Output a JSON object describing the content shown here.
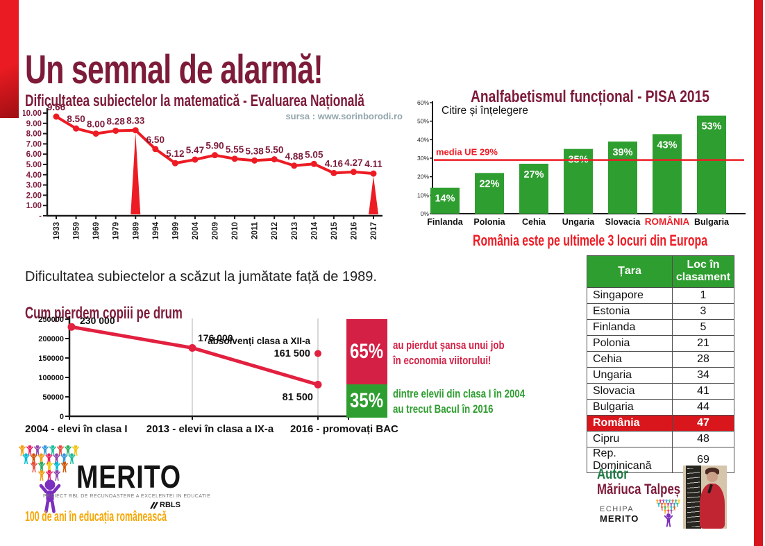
{
  "page": {
    "title": "Un semnal de alarmă!"
  },
  "colors": {
    "maroon": "#7d1b39",
    "bright_red": "#ee1c25",
    "crimson": "#d42045",
    "green": "#2f9e30",
    "dark_green": "#1f7a44",
    "orange": "#f7a600",
    "source_gray": "#93a6ad",
    "table_highlight_red": "#d9161c",
    "side_band_red": "#d8151e"
  },
  "chart_data": [
    {
      "id": "eval-matematica",
      "type": "line",
      "title": "Dificultatea subiectelor la matematică - Evaluarea Națională",
      "source": "sursa : www.sorinborodi.ro",
      "categories": [
        "1933",
        "1959",
        "1969",
        "1979",
        "1989",
        "1994",
        "1999",
        "2004",
        "2009",
        "2010",
        "2011",
        "2012",
        "2013",
        "2014",
        "2015",
        "2016",
        "2017"
      ],
      "values": [
        9.66,
        8.5,
        8.0,
        8.28,
        8.33,
        6.5,
        5.12,
        5.47,
        5.9,
        5.55,
        5.38,
        5.5,
        4.88,
        5.05,
        4.16,
        4.27,
        4.11
      ],
      "value_labels": [
        "9.66",
        "8.50",
        "8.00",
        "8.28",
        "8.33",
        "6.50",
        "5.12",
        "5.47",
        "5.90",
        "5.55",
        "5.38",
        "5.50",
        "4.88",
        "5.05",
        "4.16",
        "4.27",
        "4.11"
      ],
      "ylim": [
        0,
        10
      ],
      "ytick_labels": [
        "10.00",
        "9.00",
        "8.00",
        "7.00",
        "6.00",
        "5.00",
        "4.00",
        "3.00",
        "2.00",
        "1.00",
        "-"
      ],
      "highlight_years": [
        "1989",
        "2017"
      ],
      "line_color": "#ed1c24",
      "grid": false,
      "legend": "none"
    },
    {
      "id": "pisa-2015",
      "type": "bar",
      "title": "Analfabetismul funcțional - PISA 2015",
      "subtitle": "Citire și înțelegere",
      "categories": [
        "Finlanda",
        "Polonia",
        "Cehia",
        "Ungaria",
        "Slovacia",
        "ROMÂNIA",
        "Bulgaria"
      ],
      "values": [
        14,
        22,
        27,
        35,
        39,
        43,
        53
      ],
      "value_labels": [
        "14%",
        "22%",
        "27%",
        "35%",
        "39%",
        "43%",
        "53%"
      ],
      "ylim": [
        0,
        60
      ],
      "ytick_labels": [
        "60%",
        "50%",
        "40%",
        "30%",
        "20%",
        "10%",
        "0%"
      ],
      "refline": {
        "value": 29,
        "label": "media UE 29%"
      },
      "highlight_category": "ROMÂNIA",
      "bar_color": "#2f9e30",
      "footer": "România este pe ultimele 3 locuri din Europa",
      "grid": false,
      "legend": "none"
    },
    {
      "id": "cum-pierdem-copiii",
      "type": "line",
      "title": "Cum pierdem copiii pe drum",
      "categories": [
        "2004 - elevi în clasa I",
        "2013 - elevi în clasa a IX-a",
        "2016 - promovați BAC"
      ],
      "values": [
        230000,
        176000,
        81500
      ],
      "point_labels": [
        "230 000",
        "176 000",
        "81 500"
      ],
      "extra_point": {
        "label": "absolvenți clasa a XII-a",
        "value": 161500,
        "value_label": "161 500"
      },
      "ylim": [
        0,
        250000
      ],
      "ytick_labels": [
        "250000",
        "200000",
        "150000",
        "100000",
        "50000",
        "0"
      ],
      "line_color": "#e2203f",
      "grid": false,
      "legend": "none",
      "callouts": [
        {
          "pct": "65%",
          "color": "#d42045",
          "line1": "au pierdut șansa unui job",
          "line2": "în economia viitorului!"
        },
        {
          "pct": "35%",
          "color": "#2f9e30",
          "line1": "dintre elevii din clasa I în 2004",
          "line2": "au trecut Bacul în 2016"
        }
      ]
    }
  ],
  "texts": {
    "conclusion": "Dificultatea subiectelor a scăzut la jumătate față de 1989."
  },
  "table": {
    "headers": [
      "Țara",
      "Loc în clasament"
    ],
    "rows": [
      {
        "country": "Singapore",
        "rank": "1",
        "highlight": false
      },
      {
        "country": "Estonia",
        "rank": "3",
        "highlight": false
      },
      {
        "country": "Finlanda",
        "rank": "5",
        "highlight": false
      },
      {
        "country": "Polonia",
        "rank": "21",
        "highlight": false
      },
      {
        "country": "Cehia",
        "rank": "28",
        "highlight": false
      },
      {
        "country": "Ungaria",
        "rank": "34",
        "highlight": false
      },
      {
        "country": "Slovacia",
        "rank": "41",
        "highlight": false
      },
      {
        "country": "Bulgaria",
        "rank": "44",
        "highlight": false
      },
      {
        "country": "România",
        "rank": "47",
        "highlight": true
      },
      {
        "country": "Cipru",
        "rank": "48",
        "highlight": false
      },
      {
        "country": "Rep. Dominicană",
        "rank": "69",
        "highlight": false
      }
    ]
  },
  "branding": {
    "logo_text": "MERITO",
    "logo_subtext": "PROIECT RBL DE RECUNOASTERE A EXCELENTEI IN EDUCATIE",
    "rbls": "RBLS",
    "anniversary": "100 de ani în educația românească",
    "logo_palette": [
      "#f39c12",
      "#e91e63",
      "#8e44ad",
      "#3498db",
      "#1abc9c",
      "#e74c3c",
      "#27ae60",
      "#f1c40f",
      "#00bcd4",
      "#d35400"
    ],
    "big_person_color": "#7b2fbe"
  },
  "author": {
    "label": "Autor",
    "name": "Măriuca Talpeș",
    "team_line1": "ECHIPA",
    "team_line2": "MERITO"
  }
}
